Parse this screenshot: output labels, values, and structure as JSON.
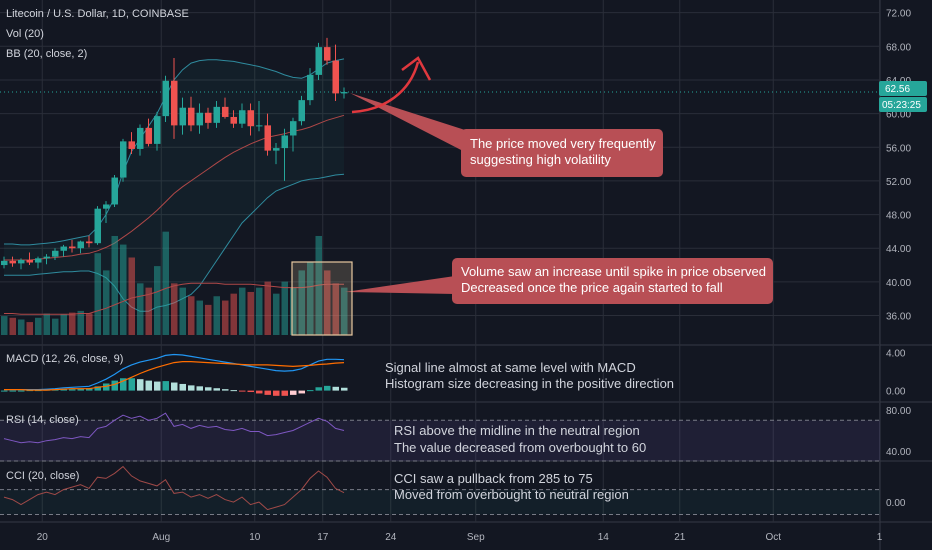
{
  "colors": {
    "background": "#131722",
    "up": "#26a69a",
    "down": "#ef5350",
    "grid": "#2a2e39",
    "separator": "#363a45",
    "bb_line": "#2f8b9e",
    "basis": "#b04848",
    "callout": "#b84f55",
    "price_tag": "#26a69a",
    "macd_line": "#2196f3",
    "signal_line": "#ff6d00",
    "rsi_line": "#7e57c2",
    "cci_line": "#a04a48"
  },
  "header": {
    "symbol_title": "Litecoin / U.S. Dollar, 1D, COINBASE",
    "vol_label": "Vol (20)",
    "bb_label": "BB (20, close, 2)"
  },
  "price_tags": {
    "last_price": "62.56",
    "countdown": "05:23:25"
  },
  "panes": {
    "macd_label": "MACD (12, 26, close, 9)",
    "rsi_label": "RSI (14, close)",
    "cci_label": "CCI (20, close)"
  },
  "annotations": {
    "volatility": [
      "The price moved very frequently",
      "suggesting high volatility"
    ],
    "volume": [
      "Volume saw an increase until spike in price observed",
      "Decreased once the price again started to fall"
    ],
    "macd": [
      "Signal line almost at same level with MACD",
      "Histogram size decreasing in the positive direction"
    ],
    "rsi": [
      "RSI above the midline in the neutral region",
      "The value decreased from overbought to 60"
    ],
    "cci": [
      "CCI saw a pullback from 285 to 75",
      "Moved from overbought to neutral region"
    ]
  },
  "chart_data": [
    {
      "type": "candlestick",
      "title": "Litecoin / U.S. Dollar, 1D, COINBASE",
      "x_ticks": [
        "20",
        "Aug",
        "10",
        "17",
        "24",
        "Sep",
        "14",
        "21",
        "Oct",
        "1"
      ],
      "y_ticks": [
        "72.00",
        "68.00",
        "64.00",
        "60.00",
        "56.00",
        "52.00",
        "48.00",
        "44.00",
        "40.00",
        "36.00"
      ],
      "ylim": [
        32.5,
        73.5
      ],
      "ohlc": [
        [
          42.0,
          43.0,
          41.6,
          42.5
        ],
        [
          42.5,
          43.0,
          41.8,
          42.2
        ],
        [
          42.2,
          42.8,
          41.5,
          42.6
        ],
        [
          42.6,
          43.5,
          42.0,
          42.3
        ],
        [
          42.3,
          43.0,
          41.6,
          42.8
        ],
        [
          42.8,
          43.3,
          42.1,
          43.0
        ],
        [
          43.0,
          44.0,
          42.6,
          43.7
        ],
        [
          43.7,
          44.4,
          43.0,
          44.2
        ],
        [
          44.2,
          45.0,
          43.5,
          44.0
        ],
        [
          44.0,
          44.9,
          43.4,
          44.8
        ],
        [
          44.8,
          45.5,
          44.1,
          44.6
        ],
        [
          44.6,
          49.0,
          44.4,
          48.7
        ],
        [
          48.7,
          49.6,
          47.0,
          49.2
        ],
        [
          49.2,
          52.7,
          48.9,
          52.4
        ],
        [
          52.4,
          57.0,
          51.9,
          56.7
        ],
        [
          56.7,
          57.8,
          55.2,
          55.8
        ],
        [
          55.8,
          58.7,
          55.0,
          58.3
        ],
        [
          58.3,
          59.4,
          56.1,
          56.4
        ],
        [
          56.4,
          60.2,
          55.6,
          59.7
        ],
        [
          59.7,
          64.5,
          59.0,
          63.9
        ],
        [
          63.9,
          66.6,
          57.0,
          58.6
        ],
        [
          58.6,
          61.9,
          57.5,
          60.7
        ],
        [
          60.7,
          62.0,
          57.9,
          58.6
        ],
        [
          58.6,
          61.2,
          57.6,
          60.1
        ],
        [
          60.1,
          60.7,
          58.2,
          58.9
        ],
        [
          58.9,
          61.5,
          58.3,
          60.8
        ],
        [
          60.8,
          61.9,
          59.4,
          59.6
        ],
        [
          59.6,
          60.4,
          58.3,
          58.8
        ],
        [
          58.8,
          61.2,
          58.3,
          60.4
        ],
        [
          60.4,
          61.2,
          57.4,
          58.5
        ],
        [
          58.5,
          61.5,
          57.9,
          58.6
        ],
        [
          58.6,
          60.0,
          55.0,
          55.6
        ],
        [
          55.6,
          56.5,
          54.0,
          55.9
        ],
        [
          55.9,
          58.2,
          52.0,
          57.4
        ],
        [
          57.4,
          59.5,
          55.5,
          59.1
        ],
        [
          59.1,
          62.1,
          58.6,
          61.6
        ],
        [
          61.6,
          65.4,
          61.0,
          64.6
        ],
        [
          64.6,
          68.4,
          64.0,
          67.9
        ],
        [
          67.9,
          69.0,
          65.8,
          66.3
        ],
        [
          66.3,
          68.2,
          61.5,
          62.4
        ],
        [
          62.4,
          63.1,
          61.8,
          62.56
        ]
      ],
      "bollinger": {
        "upper": [
          44.5,
          44.5,
          44.4,
          44.4,
          44.5,
          44.6,
          44.7,
          44.9,
          45.1,
          45.3,
          45.5,
          46.5,
          48.0,
          50.0,
          53.0,
          55.5,
          57.0,
          58.5,
          60.0,
          62.0,
          64.0,
          65.2,
          66.0,
          66.3,
          66.4,
          66.4,
          66.3,
          66.2,
          66.0,
          65.8,
          65.6,
          65.3,
          65.0,
          64.6,
          64.3,
          64.2,
          64.6,
          65.3,
          66.0,
          66.3,
          66.5
        ],
        "basis": [
          42.6,
          42.6,
          42.6,
          42.6,
          42.7,
          42.8,
          42.9,
          43.0,
          43.1,
          43.3,
          43.4,
          43.7,
          44.1,
          44.6,
          45.3,
          46.0,
          46.8,
          47.6,
          48.5,
          49.5,
          50.5,
          51.3,
          52.0,
          52.7,
          53.4,
          54.1,
          54.8,
          55.4,
          55.9,
          56.4,
          56.8,
          57.2,
          57.4,
          57.6,
          57.9,
          58.1,
          58.4,
          58.8,
          59.2,
          59.5,
          59.8
        ],
        "lower": [
          40.8,
          40.8,
          40.8,
          40.8,
          40.9,
          41.0,
          41.1,
          41.2,
          41.2,
          41.3,
          41.3,
          41.0,
          40.5,
          39.5,
          38.0,
          37.0,
          36.5,
          36.5,
          37.0,
          37.2,
          37.5,
          38.0,
          38.5,
          39.5,
          41.0,
          42.5,
          44.0,
          45.5,
          47.0,
          48.0,
          49.0,
          50.0,
          50.8,
          51.2,
          51.6,
          52.0,
          52.2,
          52.3,
          52.5,
          52.7,
          52.8
        ]
      }
    },
    {
      "type": "bar",
      "name": "Vol (20)",
      "values": [
        22,
        20,
        18,
        15,
        20,
        25,
        19,
        24,
        26,
        28,
        25,
        95,
        75,
        115,
        105,
        90,
        60,
        55,
        80,
        120,
        60,
        55,
        45,
        40,
        35,
        45,
        40,
        48,
        55,
        50,
        55,
        62,
        48,
        62,
        55,
        75,
        85,
        115,
        75,
        60,
        55
      ],
      "ylim": [
        0,
        180
      ],
      "volume_ma": [
        25,
        25,
        24,
        24,
        24,
        24,
        24,
        24,
        24,
        25,
        25,
        28,
        31,
        35,
        39,
        43,
        45,
        47,
        50,
        54,
        57,
        59,
        60,
        60,
        60,
        60,
        59,
        59,
        59,
        59,
        58,
        57,
        56,
        55,
        55,
        55,
        56,
        58,
        59,
        59,
        59
      ]
    },
    {
      "type": "bar",
      "name": "MACD (12, 26, close, 9)",
      "y_ticks": [
        "4.00",
        "0.00"
      ],
      "ylim": [
        -1.2,
        4.8
      ],
      "histogram": [
        0,
        0,
        0,
        0.05,
        0.05,
        0.1,
        0.1,
        0.15,
        0.15,
        0.2,
        0.25,
        0.45,
        0.75,
        1.05,
        1.3,
        1.3,
        1.2,
        1.05,
        0.95,
        1.0,
        0.85,
        0.7,
        0.55,
        0.45,
        0.35,
        0.25,
        0.15,
        0.05,
        -0.05,
        -0.15,
        -0.3,
        -0.45,
        -0.55,
        -0.55,
        -0.45,
        -0.3,
        0.05,
        0.35,
        0.5,
        0.4,
        0.3
      ],
      "macd": [
        0.1,
        0.1,
        0.1,
        0.1,
        0.1,
        0.15,
        0.2,
        0.3,
        0.35,
        0.4,
        0.45,
        0.8,
        1.2,
        1.7,
        2.3,
        2.7,
        3.0,
        3.2,
        3.4,
        3.7,
        3.8,
        3.75,
        3.6,
        3.45,
        3.3,
        3.15,
        3.0,
        2.85,
        2.7,
        2.55,
        2.4,
        2.25,
        2.1,
        2.05,
        2.1,
        2.3,
        2.7,
        3.1,
        3.3,
        3.3,
        3.25
      ],
      "signal": [
        0.1,
        0.1,
        0.1,
        0.05,
        0.05,
        0.05,
        0.1,
        0.15,
        0.2,
        0.2,
        0.2,
        0.35,
        0.45,
        0.65,
        1.0,
        1.4,
        1.8,
        2.15,
        2.45,
        2.7,
        2.95,
        3.05,
        3.05,
        3.0,
        2.95,
        2.9,
        2.85,
        2.8,
        2.75,
        2.7,
        2.7,
        2.7,
        2.65,
        2.6,
        2.55,
        2.6,
        2.65,
        2.75,
        2.8,
        2.9,
        2.95
      ]
    },
    {
      "type": "line",
      "name": "RSI (14, close)",
      "y_ticks": [
        "80.00",
        "40.00"
      ],
      "ylim": [
        30,
        88
      ],
      "values": [
        52,
        50,
        48,
        49,
        48,
        50,
        51,
        53,
        52,
        54,
        53,
        62,
        64,
        70,
        75,
        72,
        74,
        70,
        72,
        77,
        64,
        66,
        62,
        65,
        63,
        64,
        61,
        60,
        62,
        59,
        59,
        55,
        56,
        58,
        60,
        64,
        68,
        72,
        69,
        62,
        60
      ],
      "overbought": 70,
      "oversold": 30
    },
    {
      "type": "line",
      "name": "CCI (20, close)",
      "y_ticks": [
        "0.00"
      ],
      "ylim": [
        -160,
        330
      ],
      "values": [
        40,
        20,
        -20,
        20,
        60,
        80,
        60,
        100,
        120,
        140,
        110,
        200,
        190,
        230,
        285,
        210,
        170,
        150,
        130,
        180,
        70,
        80,
        40,
        60,
        30,
        60,
        20,
        0,
        40,
        -20,
        0,
        -60,
        -40,
        -20,
        40,
        100,
        190,
        250,
        200,
        110,
        75
      ],
      "upper_band": 100,
      "lower_band": -100
    }
  ]
}
